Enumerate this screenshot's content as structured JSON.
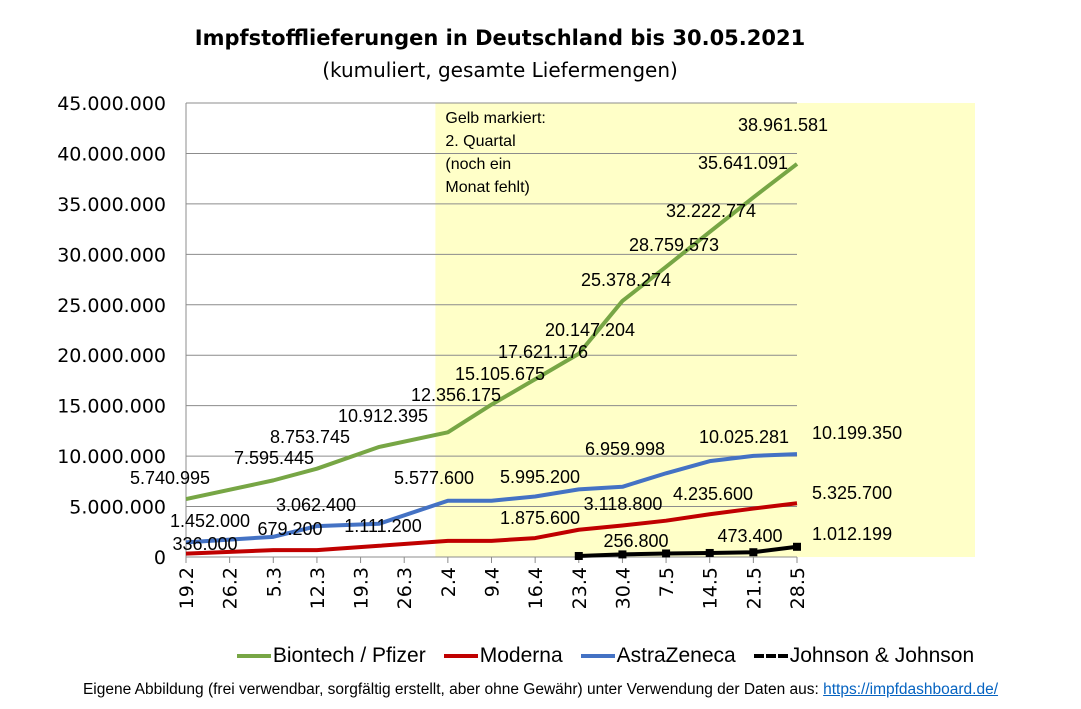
{
  "chart_data": {
    "type": "line",
    "title": "Impfstofflieferungen in Deutschland bis 30.05.2021",
    "subtitle": "(kumuliert, gesamte Liefermengen)",
    "xlabel": "",
    "ylabel": "",
    "x_tick_labels": [
      "19.2",
      "26.2",
      "5.3",
      "12.3",
      "19.3",
      "26.3",
      "2.4",
      "9.4",
      "16.4",
      "23.4",
      "30.4",
      "7.5",
      "14.5",
      "21.5",
      "28.5"
    ],
    "x_ticks": [
      "2021-02-19",
      "2021-02-26",
      "2021-03-05",
      "2021-03-12",
      "2021-03-19",
      "2021-03-26",
      "2021-04-02",
      "2021-04-09",
      "2021-04-16",
      "2021-04-23",
      "2021-04-30",
      "2021-05-07",
      "2021-05-14",
      "2021-05-21",
      "2021-05-28"
    ],
    "xlim": [
      "2021-02-19",
      "2021-05-28"
    ],
    "ylim": [
      0,
      45000000
    ],
    "y_ticks": [
      0,
      5000000,
      10000000,
      15000000,
      20000000,
      25000000,
      30000000,
      35000000,
      40000000,
      45000000
    ],
    "y_tick_labels": [
      "0",
      "5.000.000",
      "10.000.000",
      "15.000.000",
      "20.000.000",
      "25.000.000",
      "30.000.000",
      "35.000.000",
      "40.000.000",
      "45.000.000"
    ],
    "grid": "horizontal",
    "legend_position": "bottom",
    "highlight": {
      "from": "2021-03-31",
      "color": "#ffffc8",
      "text": [
        "Gelb markiert:",
        "2. Quartal",
        "(noch ein",
        "Monat  fehlt)"
      ]
    },
    "series": [
      {
        "name": "Biontech / Pfizer",
        "color": "#77a645",
        "style": "solid",
        "points": [
          [
            "2021-02-19",
            5740995,
            "5.740.995"
          ],
          [
            "2021-03-05",
            7595445,
            "7.595.445"
          ],
          [
            "2021-03-12",
            8753745,
            "8.753.745"
          ],
          [
            "2021-03-22",
            10912395,
            "10.912.395"
          ],
          [
            "2021-04-02",
            12356175,
            "12.356.175"
          ],
          [
            "2021-04-09",
            15105675,
            "15.105.675"
          ],
          [
            "2021-04-16",
            17621176,
            "17.621.176"
          ],
          [
            "2021-04-23",
            20147204,
            "20.147.204"
          ],
          [
            "2021-04-30",
            25378274,
            "25.378.274"
          ],
          [
            "2021-05-07",
            28759573,
            "28.759.573"
          ],
          [
            "2021-05-14",
            32222774,
            "32.222.774"
          ],
          [
            "2021-05-21",
            35641091,
            "35.641.091"
          ],
          [
            "2021-05-28",
            38961581,
            "38.961.581"
          ]
        ]
      },
      {
        "name": "Moderna",
        "color": "#c00000",
        "style": "solid",
        "points": [
          [
            "2021-02-19",
            336000,
            "336.000"
          ],
          [
            "2021-03-05",
            679200,
            "679.200"
          ],
          [
            "2021-03-12",
            679200,
            null
          ],
          [
            "2021-03-22",
            1111200,
            "1.111.200"
          ],
          [
            "2021-04-02",
            1600000,
            null
          ],
          [
            "2021-04-09",
            1600000,
            null
          ],
          [
            "2021-04-16",
            1875600,
            "1.875.600"
          ],
          [
            "2021-04-23",
            2700000,
            null
          ],
          [
            "2021-04-30",
            3118800,
            "3.118.800"
          ],
          [
            "2021-05-07",
            3600000,
            null
          ],
          [
            "2021-05-14",
            4235600,
            "4.235.600"
          ],
          [
            "2021-05-21",
            4800000,
            null
          ],
          [
            "2021-05-28",
            5325700,
            "5.325.700"
          ]
        ]
      },
      {
        "name": "AstraZeneca",
        "color": "#4472c4",
        "style": "solid",
        "points": [
          [
            "2021-02-19",
            1452000,
            "1.452.000"
          ],
          [
            "2021-03-05",
            2000000,
            null
          ],
          [
            "2021-03-12",
            3062400,
            "3.062.400"
          ],
          [
            "2021-03-22",
            3300000,
            null
          ],
          [
            "2021-04-02",
            5577600,
            "5.577.600"
          ],
          [
            "2021-04-09",
            5577600,
            null
          ],
          [
            "2021-04-16",
            5995200,
            "5.995.200"
          ],
          [
            "2021-04-23",
            6700000,
            null
          ],
          [
            "2021-04-30",
            6959998,
            "6.959.998"
          ],
          [
            "2021-05-07",
            8300000,
            null
          ],
          [
            "2021-05-14",
            9500000,
            null
          ],
          [
            "2021-05-21",
            10025281,
            "10.025.281"
          ],
          [
            "2021-05-28",
            10199350,
            "10.199.350"
          ]
        ]
      },
      {
        "name": "Johnson & Johnson",
        "color": "#000000",
        "style": "dashed-markers",
        "points": [
          [
            "2021-04-23",
            100000,
            null
          ],
          [
            "2021-04-30",
            256800,
            "256.800"
          ],
          [
            "2021-05-07",
            350000,
            null
          ],
          [
            "2021-05-14",
            400000,
            null
          ],
          [
            "2021-05-21",
            473400,
            "473.400"
          ],
          [
            "2021-05-28",
            1012199,
            "1.012.199"
          ]
        ]
      }
    ]
  },
  "footer": {
    "text": "Eigene Abbildung (frei verwendbar, sorgfältig erstellt, aber ohne Gewähr) unter Verwendung der Daten aus: ",
    "link": "https://impfdashboard.de/"
  }
}
